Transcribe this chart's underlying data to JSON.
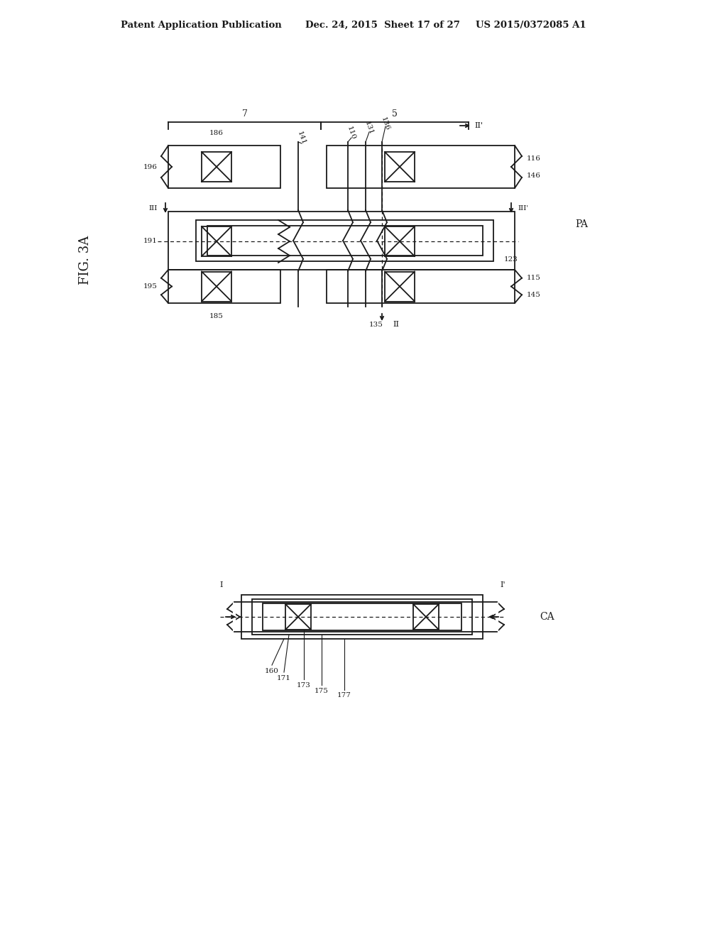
{
  "bg_color": "#ffffff",
  "line_color": "#1a1a1a",
  "header_text1": "Patent Application Publication",
  "header_text2": "Dec. 24, 2015  Sheet 17 of 27",
  "header_text3": "US 2015/0372085 A1"
}
